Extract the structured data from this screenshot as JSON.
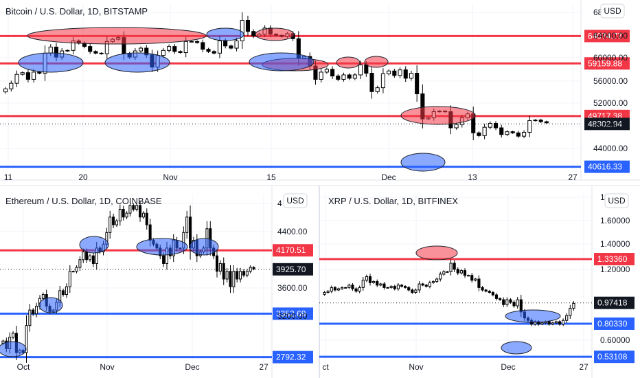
{
  "colors": {
    "up": "#ffffff",
    "down": "#000000",
    "wick": "#000000",
    "resistance": "#f23645",
    "support": "#2962ff",
    "grid": "#f0f3fa",
    "text": "#131722",
    "axis_border": "#e0e3eb"
  },
  "chart_data": [
    {
      "type": "candlestick",
      "title": "Bitcoin / U.S. Dollar, 1D, BITSTAMP",
      "currency_label": "USD",
      "xlabel": "",
      "ylabel": "",
      "x_ticks": [
        "11",
        "20",
        "Nov",
        "15",
        "Dec",
        "13",
        "27"
      ],
      "y_ticks": [
        "68",
        "64000.00",
        "60000.00",
        "56000.00",
        "52000.00",
        "48000.00",
        "44000.00"
      ],
      "ylim": [
        40200,
        69800
      ],
      "current_price": 48302.94,
      "current_price_label": "48302.94",
      "horizontal_levels": [
        {
          "value": 64074.77,
          "label": "64074.77",
          "kind": "resistance"
        },
        {
          "value": 59159.88,
          "label": "59159.88",
          "kind": "resistance"
        },
        {
          "value": 49717.38,
          "label": "49717.38",
          "kind": "resistance"
        },
        {
          "value": 40616.33,
          "label": "40616.33",
          "kind": "support"
        }
      ],
      "ohlc_close": [
        54600,
        55600,
        57200,
        57500,
        56300,
        57600,
        57400,
        61000,
        62100,
        60300,
        61400,
        61500,
        63200,
        62800,
        62200,
        61300,
        61000,
        60900,
        63100,
        63500,
        63800,
        60900,
        60300,
        61400,
        61900,
        60700,
        58500,
        60600,
        61500,
        62200,
        61300,
        61100,
        63100,
        63100,
        62900,
        61700,
        61300,
        61000,
        63200,
        62300,
        61900,
        63200,
        66900,
        64900,
        64100,
        64400,
        65500,
        64400,
        64200,
        64000,
        64500,
        63600,
        60100,
        60400,
        58700,
        56300,
        57600,
        58100,
        56900,
        56300,
        57100,
        56500,
        57100,
        58900,
        57400,
        54100,
        54800,
        57300,
        57800,
        57000,
        58000,
        56500,
        57400,
        53700,
        49200,
        49400,
        50500,
        50600,
        50500,
        47600,
        48200,
        49400,
        50100,
        46700,
        46200,
        47700,
        48400,
        47600,
        46400,
        46900,
        46700,
        46100,
        46800,
        48900,
        49000,
        48700,
        48500
      ],
      "circles_red": [
        "~64900 Oct 13-Nov 8",
        "~64700 Nov 12-15",
        "~59000 Nov 15-21",
        "~60100 Nov 24",
        "~60100 Nov 28",
        "~49700 Dec 6-12"
      ],
      "circles_blue": [
        "~59300 Oct 9-14",
        "~59200 Oct 22-31",
        "~64600 Nov 8-11",
        "~59700 Nov 13-19",
        "~40600 Dec 4"
      ]
    },
    {
      "type": "candlestick",
      "title": "Ethereum / U.S. Dollar, 1D, COINBASE",
      "currency_label": "USD",
      "xlabel": "",
      "ylabel": "",
      "x_ticks": [
        "Oct",
        "Nov",
        "Dec",
        "27"
      ],
      "y_ticks": [
        "4",
        "4400.00",
        "3600.00",
        "3200.00"
      ],
      "ylim": [
        2700,
        4900
      ],
      "current_price": 3925.7,
      "current_price_label": "3925.70",
      "horizontal_levels": [
        {
          "value": 4170.51,
          "label": "4170.51",
          "kind": "resistance"
        },
        {
          "value": 3352.69,
          "label": "3352.69",
          "kind": "support"
        },
        {
          "value": 2792.32,
          "label": "2792.32",
          "kind": "support"
        }
      ],
      "ohlc_close": [
        3000,
        2900,
        3050,
        3100,
        2850,
        2880,
        2850,
        3200,
        3400,
        3350,
        3450,
        3550,
        3600,
        3450,
        3380,
        3400,
        3500,
        3650,
        3600,
        3700,
        3900,
        3900,
        3950,
        4050,
        4150,
        4050,
        4100,
        4000,
        4200,
        4150,
        4250,
        4400,
        4600,
        4500,
        4550,
        4700,
        4600,
        4650,
        4750,
        4700,
        4750,
        4600,
        4650,
        4500,
        4300,
        4250,
        4200,
        4100,
        4000,
        4200,
        4100,
        4300,
        4200,
        4200,
        4400,
        4600,
        4200,
        4300,
        4100,
        4150,
        4200,
        4450,
        4200,
        4100,
        3900,
        4000,
        3800,
        3900,
        3700,
        3900,
        3800,
        3900,
        3850,
        3900,
        3950,
        3930
      ],
      "circles_red": [],
      "circles_blue": [
        "~2790 Sep 28",
        "~3370 Oct 12",
        "~4200 Oct 26",
        "~4180 Nov 15-25",
        "~4180 Dec 2"
      ]
    },
    {
      "type": "candlestick",
      "title": "XRP / U.S. Dollar, 1D, BITFINEX",
      "currency_label": "USD",
      "xlabel": "",
      "ylabel": "",
      "x_ticks": [
        "ct",
        "Nov",
        "Dec",
        "27"
      ],
      "y_ticks": [
        "1.8000",
        "1.60000",
        "1.40000",
        "1.20000",
        "0.60000"
      ],
      "ylim": [
        0.47,
        1.87
      ],
      "current_price": 0.97418,
      "current_price_label": "0.97418",
      "horizontal_levels": [
        {
          "value": 1.3336,
          "label": "1.33360",
          "kind": "resistance"
        },
        {
          "value": 0.8033,
          "label": "0.80330",
          "kind": "support"
        },
        {
          "value": 0.53108,
          "label": "0.53108",
          "kind": "support"
        }
      ],
      "ohlc_close": [
        1.06,
        1.07,
        1.1,
        1.08,
        1.09,
        1.1,
        1.1,
        1.12,
        1.09,
        1.07,
        1.1,
        1.16,
        1.19,
        1.14,
        1.15,
        1.12,
        1.13,
        1.1,
        1.1,
        1.11,
        1.09,
        1.12,
        1.11,
        1.1,
        1.08,
        1.06,
        1.08,
        1.13,
        1.12,
        1.11,
        1.14,
        1.15,
        1.17,
        1.21,
        1.23,
        1.23,
        1.3,
        1.25,
        1.22,
        1.24,
        1.2,
        1.2,
        1.16,
        1.17,
        1.1,
        1.08,
        1.07,
        1.06,
        1.04,
        1.01,
        1.0,
        0.96,
        1.0,
        0.98,
        0.95,
        1.0,
        0.9,
        0.85,
        0.83,
        0.8,
        0.82,
        0.8,
        0.81,
        0.82,
        0.8,
        0.81,
        0.82,
        0.8,
        0.83,
        0.87,
        0.93,
        0.97
      ],
      "circles_red": [
        "~1.33 Nov 1"
      ],
      "circles_blue": [
        "~0.80 Dec 4-20",
        "~0.53 Dec 4"
      ]
    }
  ]
}
